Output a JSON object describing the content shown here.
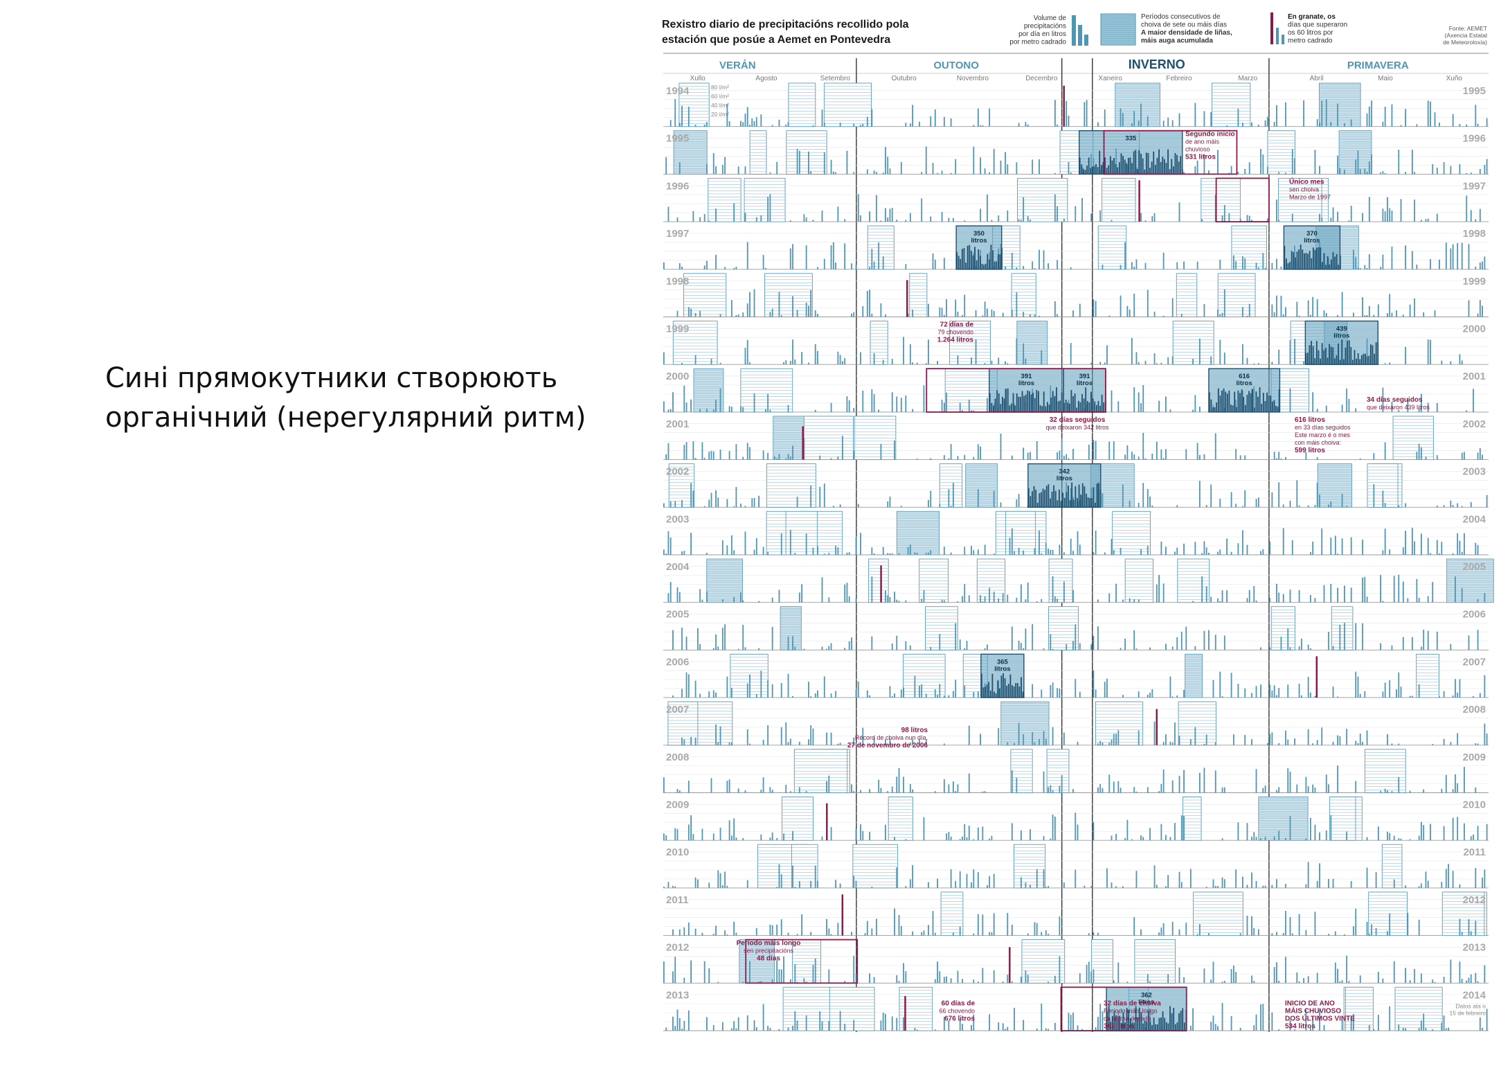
{
  "caption": {
    "line1": "Сині прямокутники створюють",
    "line2": "органічний (нерегулярний ритм)"
  },
  "chart_data": {
    "type": "bar",
    "title": "Rexistro diario de precipitacións recollido pola estación que posúe a Aemet en Pontevedra",
    "title_line1": "Rexistro diario de precipitacións recollido pola",
    "title_line2": "estación que posúe a Aemet en Pontevedra",
    "legend": {
      "bars": [
        "Volume de",
        "precipitacións",
        "por día en litros",
        "por metro cadrado"
      ],
      "periods": [
        "Períodos consecutivos de",
        "choiva de sete ou máis días",
        "A maior densidade de liñas,",
        "máis auga acumulada"
      ],
      "granate": [
        "En granate, os",
        "días que superaron",
        "os 60 litros por",
        "metro cadrado"
      ]
    },
    "source": [
      "Fonte: AEMET",
      "(Axencia Estatal",
      "de Meteoroloxía)"
    ],
    "seasons": [
      "VERÁN",
      "OUTONO",
      "INVERNO",
      "PRIMAVERA"
    ],
    "months": [
      "Xullo",
      "Agosto",
      "Setembro",
      "Outubro",
      "Novembro",
      "Decembro",
      "Xaneiro",
      "Febreiro",
      "Marzo",
      "Abril",
      "Maio",
      "Xuño"
    ],
    "scale_labels": [
      "80 l/m²",
      "60 l/m²",
      "40 l/m²",
      "20 l/m²"
    ],
    "rows": [
      {
        "left": "1994",
        "right": "1995"
      },
      {
        "left": "1995",
        "right": "1996"
      },
      {
        "left": "1996",
        "right": "1997"
      },
      {
        "left": "1997",
        "right": "1998"
      },
      {
        "left": "1998",
        "right": "1999"
      },
      {
        "left": "1999",
        "right": "2000"
      },
      {
        "left": "2000",
        "right": "2001"
      },
      {
        "left": "2001",
        "right": "2002"
      },
      {
        "left": "2002",
        "right": "2003"
      },
      {
        "left": "2003",
        "right": "2004"
      },
      {
        "left": "2004",
        "right": "2005"
      },
      {
        "left": "2005",
        "right": "2006"
      },
      {
        "left": "2006",
        "right": "2007"
      },
      {
        "left": "2007",
        "right": "2008"
      },
      {
        "left": "2008",
        "right": "2009"
      },
      {
        "left": "2009",
        "right": "2010"
      },
      {
        "left": "2010",
        "right": "2011"
      },
      {
        "left": "2011",
        "right": "2012"
      },
      {
        "left": "2012",
        "right": "2013"
      },
      {
        "left": "2013",
        "right": "2014"
      }
    ],
    "end_note": [
      "Datos ata o",
      "15 de febreiro"
    ],
    "granate_color": "#8b1a4a",
    "bar_color": "#4f95b4",
    "highlights": [
      {
        "row": 1,
        "start": 0.504,
        "end": 0.629,
        "label": "335"
      },
      {
        "row": 3,
        "start": 0.355,
        "end": 0.41,
        "label": [
          "350",
          "litros"
        ]
      },
      {
        "row": 3,
        "start": 0.752,
        "end": 0.82,
        "label": [
          "370",
          "litros"
        ]
      },
      {
        "row": 5,
        "start": 0.778,
        "end": 0.866,
        "label": [
          "439",
          "litros"
        ]
      },
      {
        "row": 6,
        "start": 0.395,
        "end": 0.485,
        "label": [
          "391",
          "litros"
        ]
      },
      {
        "row": 6,
        "start": 0.485,
        "end": 0.536,
        "label": [
          "391",
          "litros"
        ]
      },
      {
        "row": 6,
        "start": 0.661,
        "end": 0.747,
        "label": [
          "616",
          "litros"
        ]
      },
      {
        "row": 8,
        "start": 0.442,
        "end": 0.53,
        "label": [
          "342",
          "litros"
        ]
      },
      {
        "row": 12,
        "start": 0.385,
        "end": 0.437,
        "label": [
          "365",
          "litros"
        ]
      },
      {
        "row": 19,
        "start": 0.537,
        "end": 0.634,
        "label": [
          "362",
          "litros"
        ]
      }
    ],
    "annotations": [
      {
        "row": 1,
        "lines": [
          "Segundo inicio",
          "de ano máis",
          "chuvioso",
          "531 litros"
        ]
      },
      {
        "row": 2,
        "lines": [
          "Único mes",
          "sen choiva",
          "Marzo de 1997"
        ]
      },
      {
        "row": 5,
        "lines": [
          "72 días de",
          "79 chovendo",
          "1.264 litros"
        ]
      },
      {
        "row": 6,
        "lines": [
          "34 días seguidos",
          "que deixaron 439 litros"
        ]
      },
      {
        "row": 7,
        "lines": [
          "616 litros",
          "en 33 días seguidos",
          "Este marzo é o mes",
          "con máis choiva:",
          "599 litros"
        ]
      },
      {
        "row": 7,
        "lines": [
          "32 días seguidos",
          "que deixaron 342 litros"
        ]
      },
      {
        "row": 13,
        "lines": [
          "98 litros",
          "Récord de choiva nun día,",
          "27 de novembro de 2006"
        ]
      },
      {
        "row": 18,
        "lines": [
          "Período máis longo",
          "sen precipitacións",
          "48 días"
        ]
      },
      {
        "row": 19,
        "lines": [
          "60 días de",
          "66 chovendo",
          "676 litros"
        ]
      },
      {
        "row": 19,
        "lines": [
          "32 días de choiva",
          "Período máis longo",
          "da última década",
          "362 litros"
        ]
      },
      {
        "row": 19,
        "lines": [
          "INICIO DE ANO",
          "MÁIS CHUVIOSO",
          "DOS ÚLTIMOS VINTE",
          "534 litros"
        ]
      }
    ]
  }
}
